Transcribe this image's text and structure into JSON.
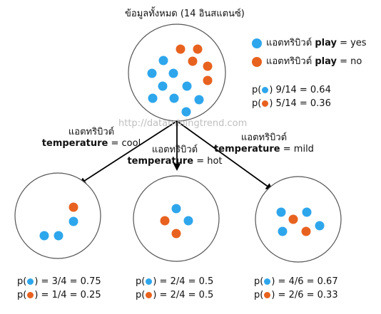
{
  "root": {
    "title": "ข้อมูลทั้งหมด (14 อินสแตนซ์)",
    "p_yes": "9/14 = 0.64",
    "p_no": "5/14 = 0.36"
  },
  "legend": {
    "attr_prefix": "แอตทริบิวต์",
    "attr_name": "play",
    "yes_suffix": " = yes",
    "no_suffix": " = no"
  },
  "colors": {
    "yes": "#2ea6ec",
    "no": "#e8621f"
  },
  "prob": {
    "open": "p(",
    "close": ") "
  },
  "watermark": "http://dataminingtrend.com",
  "branches": [
    {
      "attr_line": "แอตทริบิวต์",
      "attr_name": "temperature",
      "value": " = cool",
      "p_yes": "= 3/4 = 0.75",
      "p_no": "= 1/4 = 0.25"
    },
    {
      "attr_line": "แอตทริบิวต์",
      "attr_name": "temperature",
      "value": " = hot",
      "p_yes": "= 2/4 = 0.5",
      "p_no": "= 2/4 = 0.5"
    },
    {
      "attr_line": "แอตทริบิวต์",
      "attr_name": "temperature",
      "value": " = mild",
      "p_yes": "= 4/6 = 0.67",
      "p_no": "= 2/6 = 0.33"
    }
  ]
}
